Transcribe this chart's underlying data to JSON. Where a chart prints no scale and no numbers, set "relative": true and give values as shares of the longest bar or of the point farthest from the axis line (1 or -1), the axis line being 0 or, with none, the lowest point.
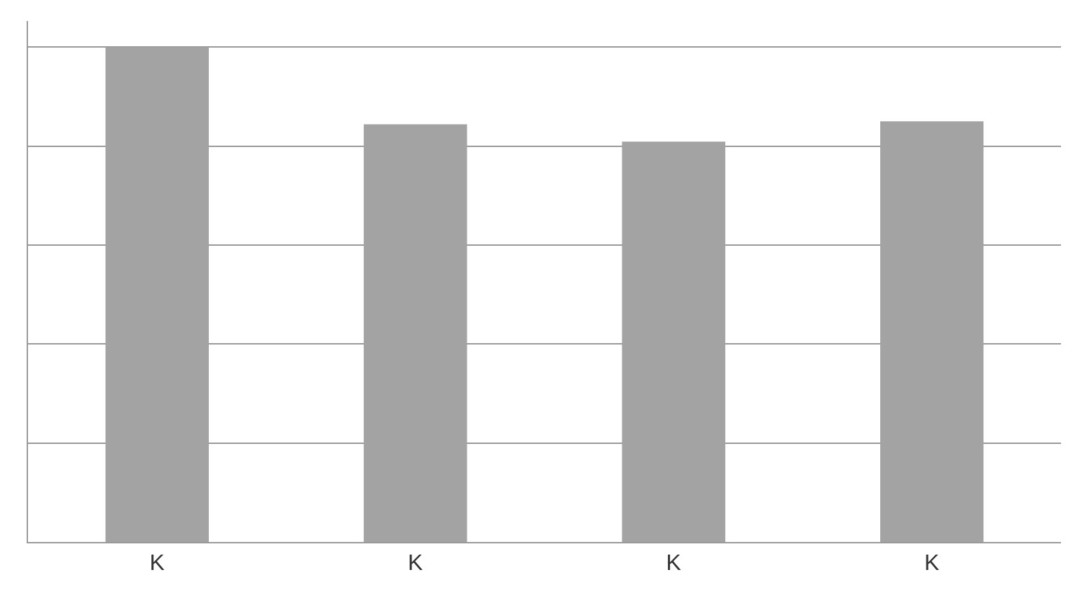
{
  "chart_data": {
    "type": "bar",
    "relative": true,
    "categories": [
      "K",
      "K",
      "K",
      "K"
    ],
    "values": [
      1,
      0.844,
      0.809,
      0.85
    ],
    "color": "#a3a3a3",
    "grid": "y",
    "legend": false
  }
}
